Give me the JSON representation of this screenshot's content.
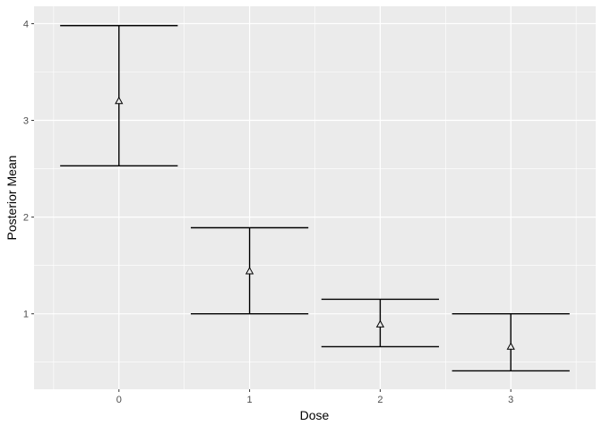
{
  "chart_data": {
    "type": "errorbar",
    "xlabel": "Dose",
    "ylabel": "Posterior Mean",
    "categories": [
      "0",
      "1",
      "2",
      "3"
    ],
    "x": [
      0,
      1,
      2,
      3
    ],
    "mean": [
      3.2,
      1.44,
      0.89,
      0.66
    ],
    "upper": [
      3.98,
      1.89,
      1.15,
      1.0
    ],
    "lower": [
      2.53,
      1.0,
      0.66,
      0.41
    ],
    "xlim": [
      -0.65,
      3.65
    ],
    "ylim": [
      0.22,
      4.18
    ],
    "yticks": [
      1,
      2,
      3,
      4
    ],
    "ytick_labels": [
      "1",
      "2",
      "3",
      "4"
    ],
    "errorbar_width": 0.9,
    "point_shape": "open-triangle",
    "grid": true,
    "panel_background": "#ebebeb",
    "grid_color": "#ffffff",
    "mark_color": "#000000"
  }
}
